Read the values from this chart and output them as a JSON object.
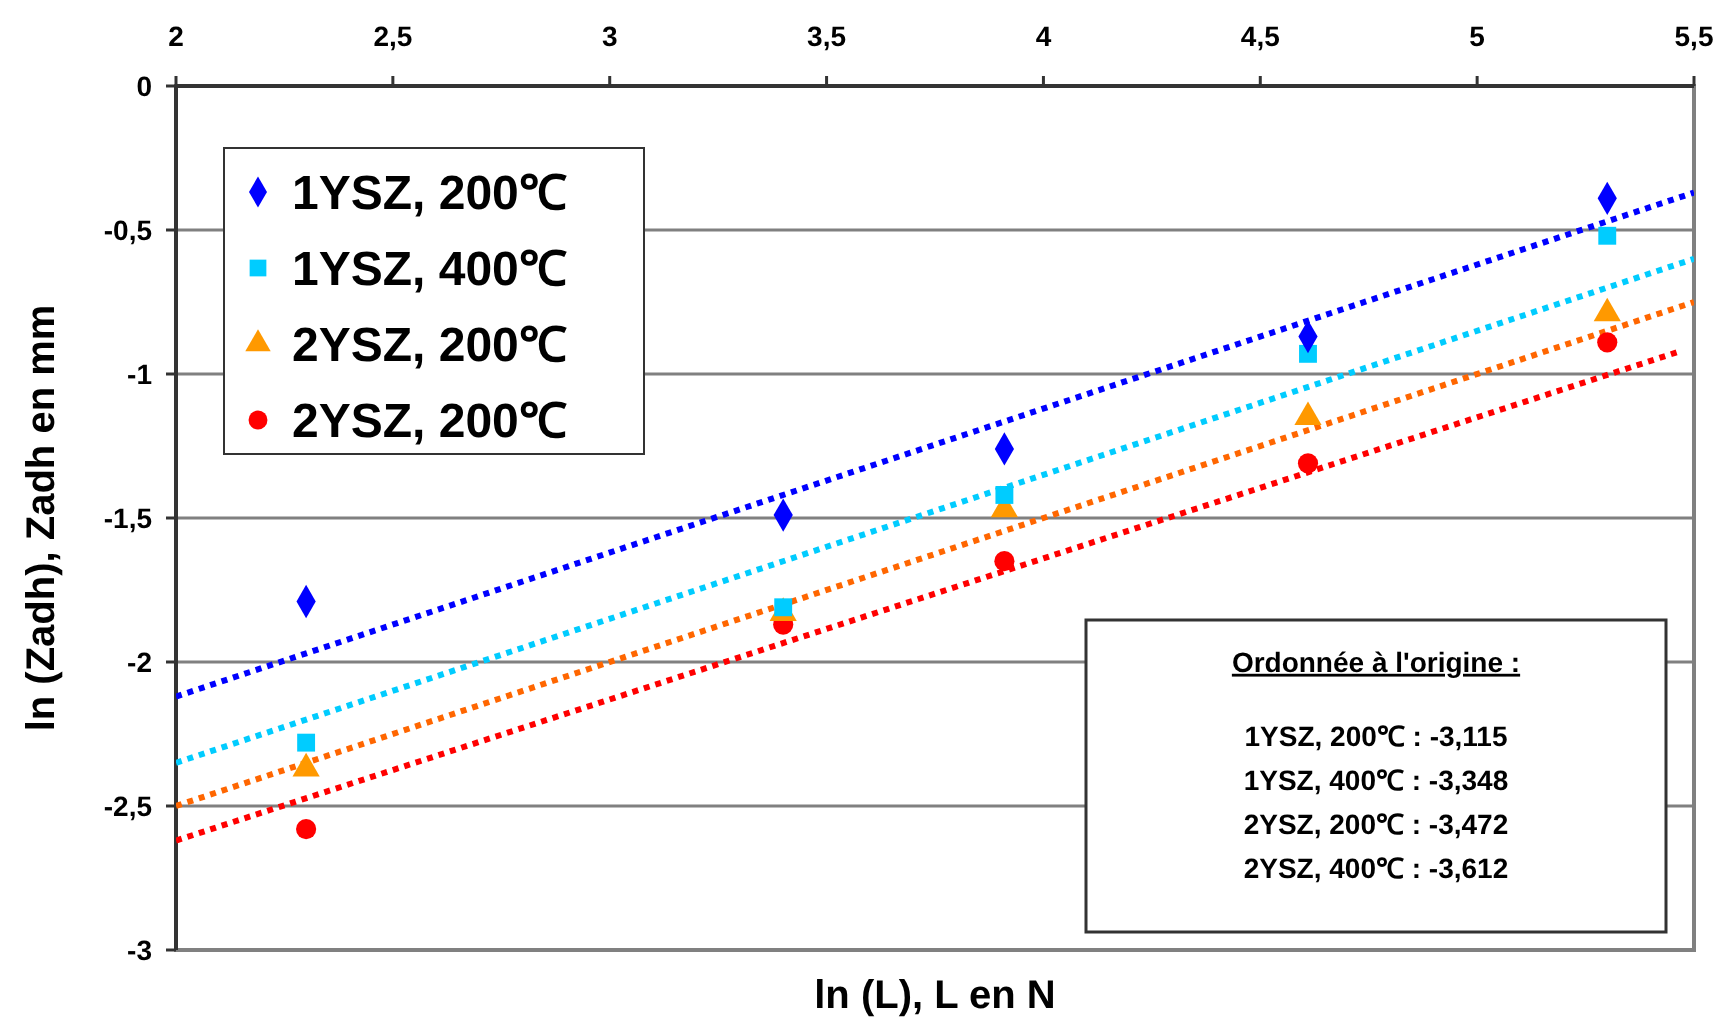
{
  "chart_data": {
    "type": "scatter",
    "xlabel": "ln (L), L en N",
    "ylabel": "ln (Zadh), Zadh en mm",
    "xlim": [
      2,
      5.5
    ],
    "xticks": [
      2,
      {
        "value": 2.5,
        "label": "2,5"
      },
      3,
      {
        "value": 3.5,
        "label": "3,5"
      },
      4,
      {
        "value": 4.5,
        "label": "4,5"
      },
      5,
      {
        "value": 5.5,
        "label": "5,5"
      }
    ],
    "ylim": [
      -3,
      0
    ],
    "yticks": [
      -3,
      {
        "value": -2.5,
        "label": "-2,5"
      },
      -2,
      {
        "value": -1.5,
        "label": "-1,5"
      },
      -1,
      {
        "value": -0.5,
        "label": "-0,5"
      },
      0
    ],
    "grid": "y",
    "legend": "top left",
    "series": [
      {
        "name": "1YSZ, 200℃",
        "color": "#0000ff",
        "marker": "diamond",
        "x": [
          2.3,
          3.4,
          3.91,
          4.61,
          5.3
        ],
        "values": [
          -1.79,
          -1.49,
          -1.26,
          -0.87,
          -0.39
        ]
      },
      {
        "name": "1YSZ, 400℃",
        "color": "#00ccff",
        "marker": "square",
        "x": [
          2.3,
          3.4,
          3.91,
          4.61,
          5.3
        ],
        "values": [
          -2.28,
          -1.81,
          -1.42,
          -0.93,
          -0.52
        ]
      },
      {
        "name": "2YSZ, 200℃",
        "color": "#ff9900",
        "marker": "triangle",
        "x": [
          2.3,
          3.4,
          3.91,
          4.61,
          5.3
        ],
        "values": [
          -2.37,
          -1.83,
          -1.47,
          -1.15,
          -0.79
        ]
      },
      {
        "name": "2YSZ, 200℃",
        "color": "#ff0000",
        "marker": "circle",
        "x": [
          2.3,
          3.4,
          3.91,
          4.61,
          5.3
        ],
        "values": [
          -2.58,
          -1.87,
          -1.65,
          -1.31,
          -0.89
        ]
      },
      {
        "type": "line",
        "line_style": "dotted",
        "color": "#0000ff",
        "x": [
          2,
          5.5
        ],
        "values": [
          -2.12,
          -0.37
        ]
      },
      {
        "type": "line",
        "line_style": "dotted",
        "color": "#00ccff",
        "x": [
          2,
          5.5
        ],
        "values": [
          -2.35,
          -0.6
        ]
      },
      {
        "type": "line",
        "line_style": "dotted",
        "color": "#ff6600",
        "x": [
          2,
          5.5
        ],
        "values": [
          -2.5,
          -0.75
        ]
      },
      {
        "type": "line",
        "line_style": "dotted",
        "color": "#ff0000",
        "x": [
          2,
          5.47
        ],
        "values": [
          -2.62,
          -0.92
        ]
      }
    ],
    "annotations": [
      "Ordonnée à l'origine :",
      "1YSZ, 200℃ : -3,115",
      "1YSZ, 400℃ : -3,348",
      "2YSZ, 200℃ : -3,472",
      "2YSZ, 400℃ : -3,612"
    ]
  }
}
